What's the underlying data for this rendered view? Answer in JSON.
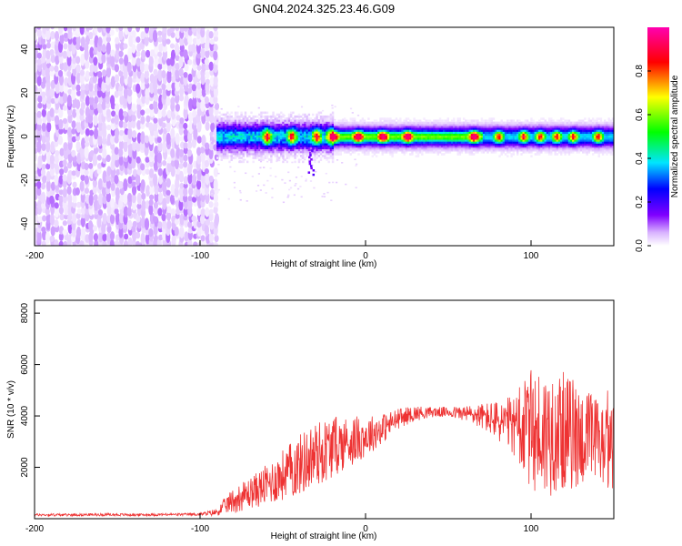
{
  "title": "GN04.2024.325.23.46.G09",
  "chart_data": [
    {
      "type": "heatmap",
      "title": "GN04.2024.325.23.46.G09",
      "xlabel": "Height of straight line (km)",
      "ylabel": "Frequency (Hz)",
      "xlim": [
        -200,
        150
      ],
      "ylim": [
        -50,
        50
      ],
      "xticks": [
        -200,
        -100,
        0,
        100
      ],
      "yticks": [
        -40,
        -20,
        0,
        20,
        40
      ],
      "colorbar": {
        "label": "Normalized spectral amplitude",
        "range": [
          0,
          1
        ],
        "ticks": [
          "0.0",
          "0.2",
          "0.4",
          "0.6",
          "0.8"
        ],
        "colors": [
          "#ffffff",
          "#d9b3ff",
          "#8000ff",
          "#0000ff",
          "#00e5ff",
          "#00ff00",
          "#ffff00",
          "#ff0000",
          "#ff00b0"
        ]
      },
      "regions": [
        {
          "name": "noise",
          "x_range": [
            -200,
            -90
          ],
          "description_level": 0.3
        },
        {
          "name": "signal band",
          "x_range": [
            -90,
            150
          ],
          "center_frequency_hz": 0,
          "width_hz": 8
        }
      ],
      "band_peaks_x": [
        -60,
        -45,
        -30,
        -20,
        -5,
        10,
        25,
        65,
        80,
        95,
        105,
        115,
        125,
        140
      ]
    },
    {
      "type": "line",
      "xlabel": "Height of straight line (km)",
      "ylabel": "SNR (10 * v/v)",
      "xlim": [
        -200,
        150
      ],
      "ylim": [
        0,
        8500
      ],
      "xticks": [
        -200,
        -100,
        0,
        100
      ],
      "yticks": [
        2000,
        4000,
        6000,
        8000
      ],
      "color": "#ee3333",
      "series": [
        {
          "name": "SNR",
          "x": [
            -200,
            -180,
            -160,
            -140,
            -120,
            -100,
            -90,
            -85,
            -80,
            -70,
            -60,
            -50,
            -40,
            -30,
            -20,
            -10,
            0,
            10,
            20,
            30,
            40,
            50,
            60,
            70,
            80,
            90,
            95,
            100,
            105,
            110,
            115,
            120,
            125,
            130,
            135,
            140,
            145,
            150
          ],
          "values": [
            150,
            150,
            160,
            150,
            160,
            170,
            250,
            500,
            700,
            1000,
            1300,
            1700,
            2100,
            2500,
            2800,
            3000,
            3200,
            3500,
            3900,
            4100,
            4150,
            4150,
            4100,
            4000,
            3800,
            3600,
            3500,
            3400,
            3300,
            3300,
            3400,
            3400,
            3300,
            3200,
            3100,
            3000,
            2800,
            2800
          ],
          "noise_amplitude": [
            50,
            50,
            50,
            50,
            50,
            50,
            150,
            300,
            500,
            600,
            800,
            1000,
            1200,
            1300,
            1200,
            1000,
            800,
            600,
            400,
            300,
            200,
            200,
            300,
            500,
            800,
            1200,
            1800,
            2400,
            2600,
            2500,
            2400,
            2300,
            2200,
            2000,
            1900,
            1800,
            1700,
            1600
          ]
        }
      ]
    }
  ]
}
